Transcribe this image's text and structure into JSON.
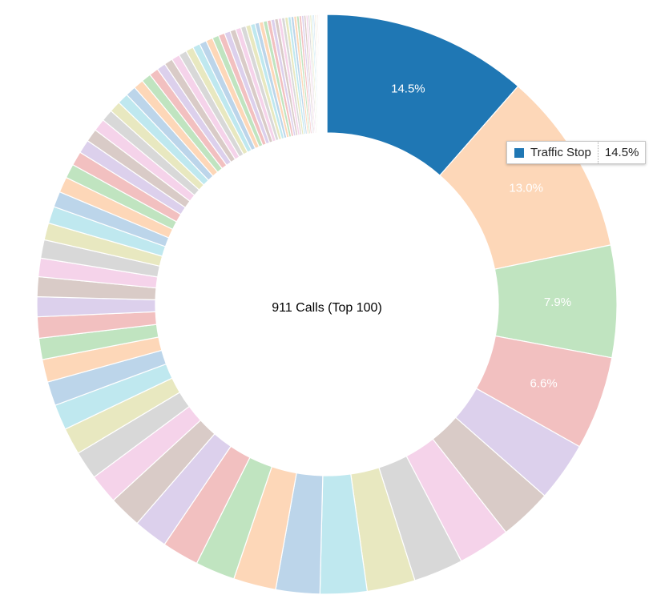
{
  "chart_data": {
    "type": "pie",
    "donut": true,
    "title": "911 Calls (Top 100)",
    "labeled_slices": [
      {
        "label": "Traffic Stop",
        "value": 14.5,
        "value_label": "14.5%",
        "color": "#1f77b4"
      },
      {
        "value": 13.0,
        "value_label": "13.0%",
        "color": "#fdd7b8"
      },
      {
        "value": 7.9,
        "value_label": "7.9%",
        "color": "#c0e4c0"
      },
      {
        "value": 6.6,
        "value_label": "6.6%",
        "color": "#f2c0c0"
      }
    ],
    "other_slices": [
      4.2,
      3.7,
      3.7,
      3.5,
      3.4,
      3.3,
      3.1,
      3.0,
      2.8,
      2.6,
      2.4,
      2.3,
      2.1,
      2.0,
      1.9,
      1.8,
      1.7,
      1.6,
      1.5,
      1.5,
      1.4,
      1.4,
      1.3,
      1.3,
      1.2,
      1.2,
      1.1,
      1.1,
      1.0,
      1.0,
      0.96,
      0.92,
      0.88,
      0.84,
      0.8,
      0.77,
      0.74,
      0.71,
      0.68,
      0.65,
      0.62,
      0.6,
      0.58,
      0.56,
      0.54,
      0.52,
      0.5,
      0.48,
      0.46,
      0.44,
      0.42,
      0.4,
      0.38,
      0.36,
      0.34,
      0.32,
      0.3,
      0.29,
      0.28,
      0.27,
      0.26,
      0.25,
      0.24,
      0.23,
      0.22,
      0.21,
      0.2,
      0.19,
      0.18,
      0.17,
      0.16,
      0.15,
      0.14,
      0.13,
      0.12,
      0.11,
      0.1,
      0.09,
      0.08,
      0.08,
      0.07,
      0.07,
      0.06,
      0.06,
      0.05,
      0.05,
      0.04,
      0.04,
      0.03,
      0.03,
      0.03,
      0.02,
      0.02,
      0.02,
      0.01,
      0.01
    ],
    "palette_cycle": [
      "#dcd0ec",
      "#d9cbc7",
      "#f5d3ea",
      "#d8d8d8",
      "#e8e8c0",
      "#bfe8ef",
      "#bcd5ea",
      "#fdd7b8",
      "#c0e4c0",
      "#f2c0c0"
    ],
    "tooltip": {
      "label": "Traffic Stop",
      "value_label": "14.5%",
      "color": "#1f77b4"
    }
  }
}
